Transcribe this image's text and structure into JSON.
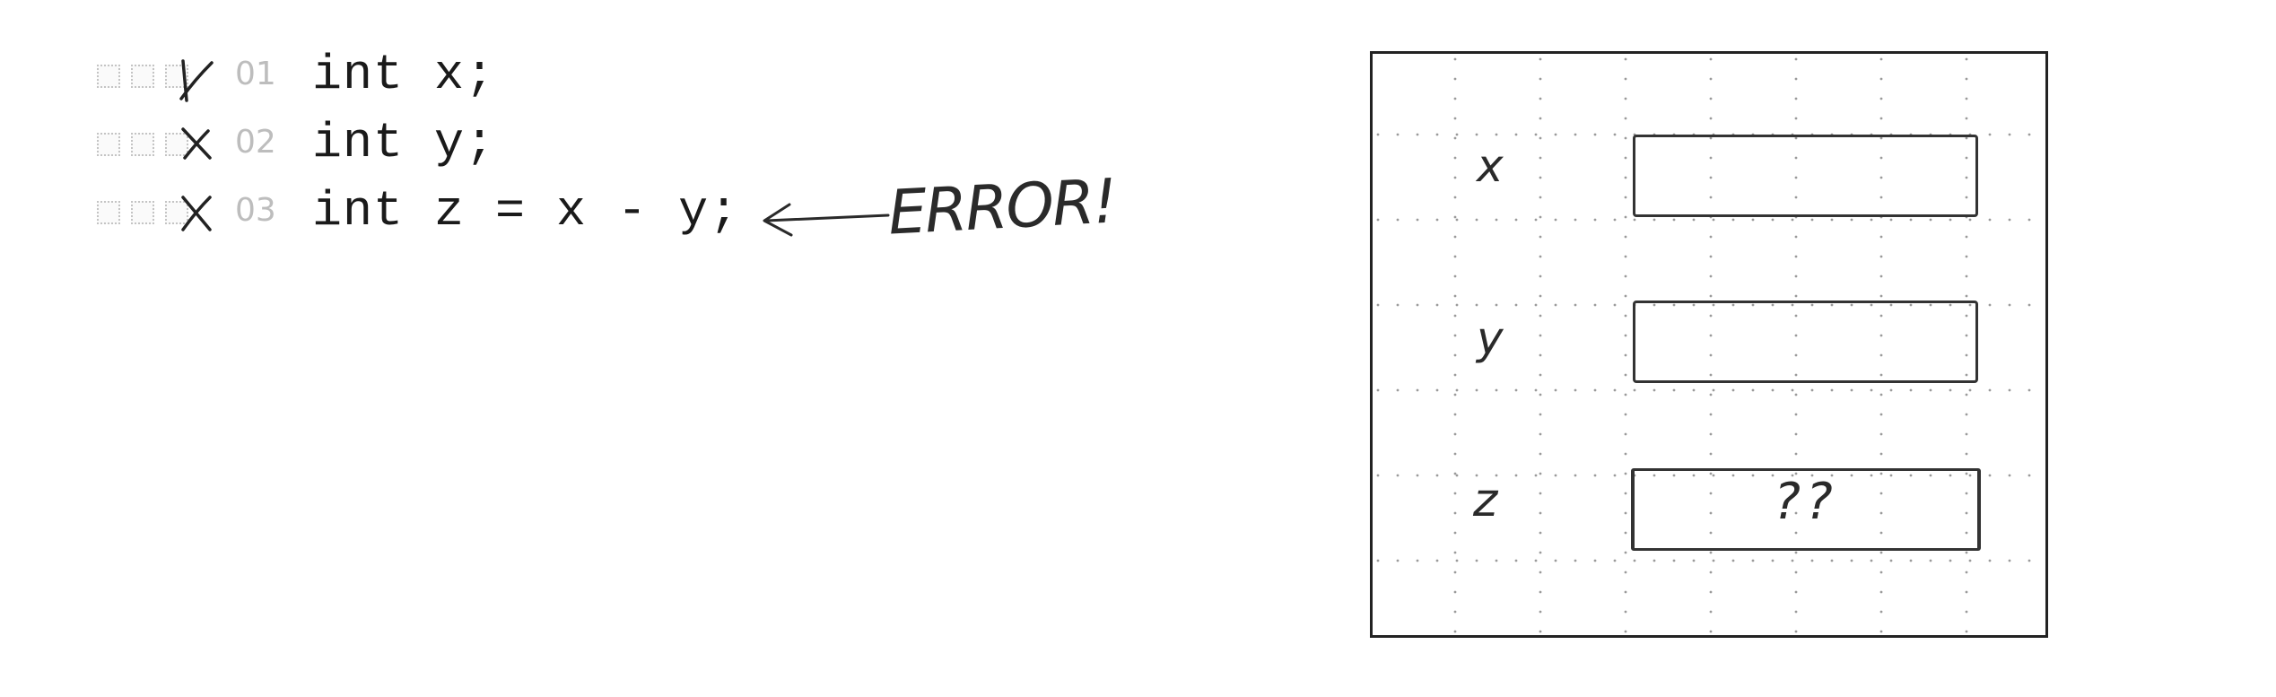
{
  "code": {
    "lines": [
      {
        "number": "01",
        "text": "int x;"
      },
      {
        "number": "02",
        "text": "int y;"
      },
      {
        "number": "03",
        "text": "int z = x - y;"
      }
    ]
  },
  "annotation": {
    "text": "ERROR!"
  },
  "memory": {
    "variables": [
      {
        "name": "x",
        "value": ""
      },
      {
        "name": "y",
        "value": ""
      },
      {
        "name": "z",
        "value": "??"
      }
    ]
  },
  "colors": {
    "ink": "#2a2a2a",
    "faded": "#bdbdbd",
    "grid_dot": "#9a9a9a"
  },
  "icons": {
    "line_marker": "x-mark-icon",
    "checkbox": "checkbox-icon",
    "arrow": "left-arrow-icon"
  }
}
